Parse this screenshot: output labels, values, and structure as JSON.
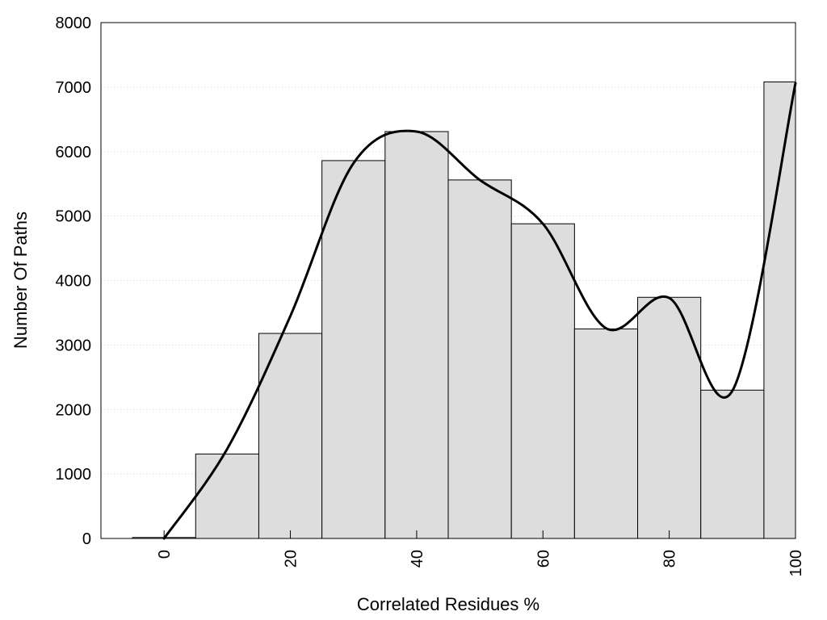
{
  "chart_data": {
    "type": "bar",
    "title": "",
    "xlabel": "Correlated Residues %",
    "ylabel": "Number Of Paths",
    "xlim": [
      -10,
      100
    ],
    "ylim": [
      0,
      8000
    ],
    "grid": "horizontal-dotted",
    "x_ticks": [
      0,
      20,
      40,
      60,
      80,
      100
    ],
    "x_tick_labels": [
      "0",
      "20",
      "40",
      "60",
      "80",
      "100"
    ],
    "y_ticks": [
      0,
      1000,
      2000,
      3000,
      4000,
      5000,
      6000,
      7000,
      8000
    ],
    "y_tick_labels": [
      "0",
      "1000",
      "2000",
      "3000",
      "4000",
      "5000",
      "6000",
      "7000",
      "8000"
    ],
    "bin_width": 10,
    "x": [
      0,
      10,
      20,
      30,
      40,
      50,
      60,
      70,
      80,
      90,
      100
    ],
    "values": [
      15,
      1310,
      3180,
      5860,
      6310,
      5560,
      4880,
      3250,
      3740,
      2300,
      7080
    ],
    "bar_color": "#dddddd",
    "curve": {
      "x": [
        0,
        10,
        20,
        30,
        40,
        50,
        60,
        70,
        80,
        90,
        100
      ],
      "y": [
        0,
        1390,
        3450,
        5820,
        6310,
        5560,
        4880,
        3260,
        3730,
        2290,
        7060
      ],
      "color": "#000000"
    }
  }
}
